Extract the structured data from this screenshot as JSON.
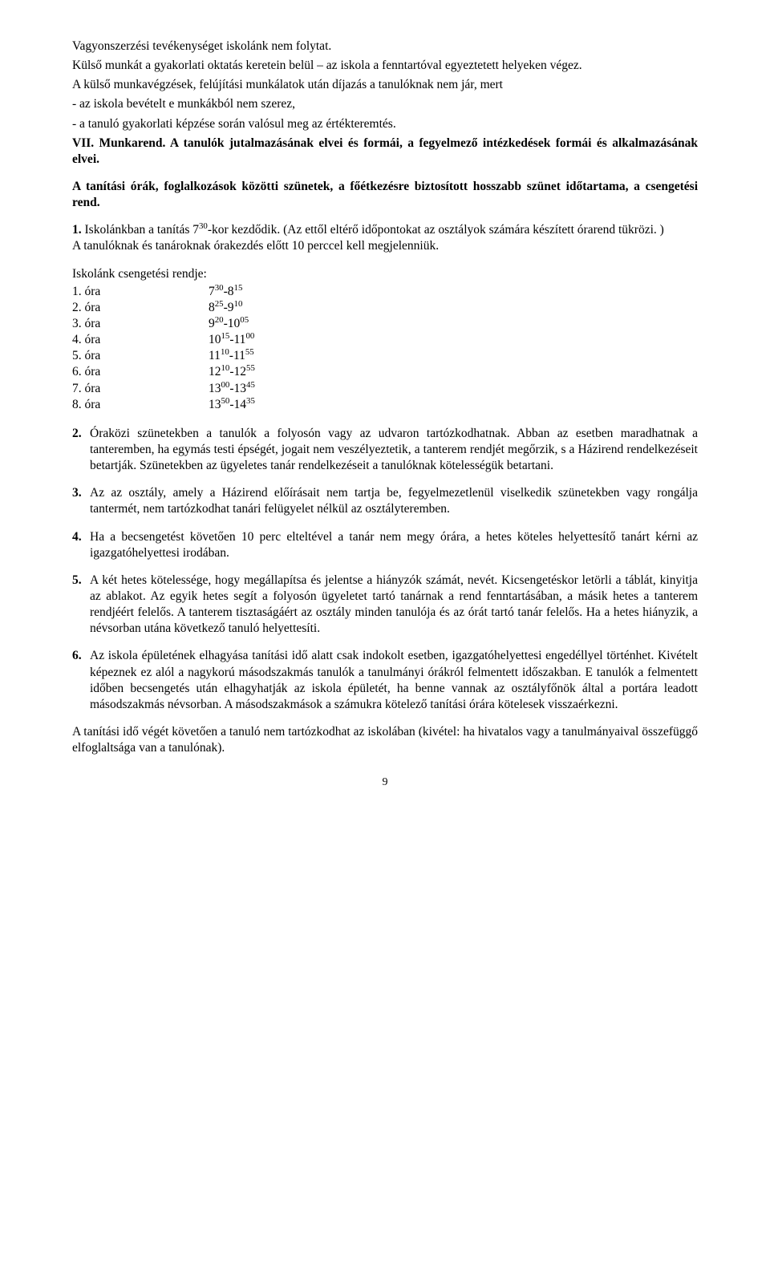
{
  "intro": {
    "line1": "Vagyonszerzési tevékenységet iskolánk nem folytat.",
    "line2": "Külső munkát a gyakorlati oktatás keretein belül – az iskola a fenntartóval egyeztetett helyeken végez.",
    "line3": "A külső munkavégzések, felújítási munkálatok után díjazás a tanulóknak nem jár, mert",
    "line4": "- az iskola bevételt e munkákból nem szerez,",
    "line5": "- a tanuló gyakorlati képzése során valósul meg az értékteremtés."
  },
  "heading1": "VII. Munkarend. A tanulók jutalmazásának elvei és formái, a fegyelmező intézkedések formái és alkalmazásának elvei.",
  "heading2": "A tanítási órák, foglalkozások közötti szünetek, a főétkezésre biztosított hosszabb szünet időtartama, a csengetési rend.",
  "item1": {
    "num": "1.",
    "text1": "Iskolánkban a tanítás 7",
    "sup1": "30",
    "text2": "-kor kezdődik. (Az ettől eltérő időpontokat az osztályok számára készített órarend tükrözi. )",
    "text3": "A tanulóknak és tanároknak órakezdés előtt 10 perccel kell megjelenniük."
  },
  "schedule": {
    "intro": "Iskolánk csengetési rendje:",
    "rows": [
      {
        "label": "1. óra",
        "a": "7",
        "as": "30",
        "dash": "-8",
        "bs": "15"
      },
      {
        "label": "2. óra",
        "a": "8",
        "as": "25",
        "dash": "-9",
        "bs": "10"
      },
      {
        "label": "3. óra",
        "a": "9",
        "as": "20",
        "dash": "-10",
        "bs": "05"
      },
      {
        "label": "4. óra",
        "a": "10",
        "as": "15",
        "dash": "-11",
        "bs": "00"
      },
      {
        "label": "5. óra",
        "a": "11",
        "as": "10",
        "dash": "-11",
        "bs": "55"
      },
      {
        "label": "6. óra",
        "a": "12",
        "as": "10",
        "dash": "-12",
        "bs": "55"
      },
      {
        "label": "7. óra",
        "a": "13",
        "as": "00",
        "dash": "-13",
        "bs": "45"
      },
      {
        "label": "8. óra",
        "a": "13",
        "as": "50",
        "dash": "-14",
        "bs": "35"
      }
    ]
  },
  "item2": {
    "num": "2.",
    "text": "Óraközi szünetekben a tanulók a folyosón vagy az udvaron tartózkodhatnak. Abban az esetben maradhatnak a tanteremben, ha egymás testi épségét, jogait nem veszélyeztetik, a tanterem rendjét megőrzik, s a Házirend rendelkezéseit betartják. Szünetekben az ügyeletes tanár rendelkezéseit a tanulóknak kötelességük betartani."
  },
  "item3": {
    "num": "3.",
    "text": "Az az osztály, amely a Házirend előírásait nem tartja be, fegyelmezetlenül viselkedik szünetekben vagy rongálja tantermét, nem tartózkodhat tanári felügyelet nélkül az osztályteremben."
  },
  "item4": {
    "num": "4.",
    "text": "Ha a becsengetést követően 10 perc elteltével a tanár nem megy órára, a hetes köteles helyettesítő tanárt kérni az igazgatóhelyettesi irodában."
  },
  "item5": {
    "num": "5.",
    "text": "A két hetes kötelessége, hogy megállapítsa és jelentse a hiányzók számát, nevét. Kicsengetéskor letörli a táblát, kinyitja az ablakot. Az egyik hetes segít a folyosón ügyeletet tartó tanárnak a rend fenntartásában, a másik hetes a tanterem rendjéért felelős. A tanterem tisztaságáért az osztály minden tanulója és az órát tartó tanár felelős. Ha a hetes hiányzik, a névsorban utána következő tanuló helyettesíti."
  },
  "item6": {
    "num": "6.",
    "text": "Az iskola épületének elhagyása tanítási idő alatt csak indokolt esetben, igazgatóhelyettesi engedéllyel történhet. Kivételt képeznek ez alól a nagykorú másodszakmás tanulók a tanulmányi órákról felmentett időszakban. E tanulók a felmentett időben becsengetés után elhagyhatják az iskola épületét, ha benne vannak az osztályfőnök által a portára leadott másodszakmás névsorban. A másodszakmások a számukra kötelező tanítási órára kötelesek visszaérkezni."
  },
  "closing": "A tanítási idő végét követően a tanuló nem tartózkodhat az iskolában (kivétel: ha hivatalos vagy a tanulmányaival összefüggő elfoglaltsága van a tanulónak).",
  "pageNumber": "9"
}
